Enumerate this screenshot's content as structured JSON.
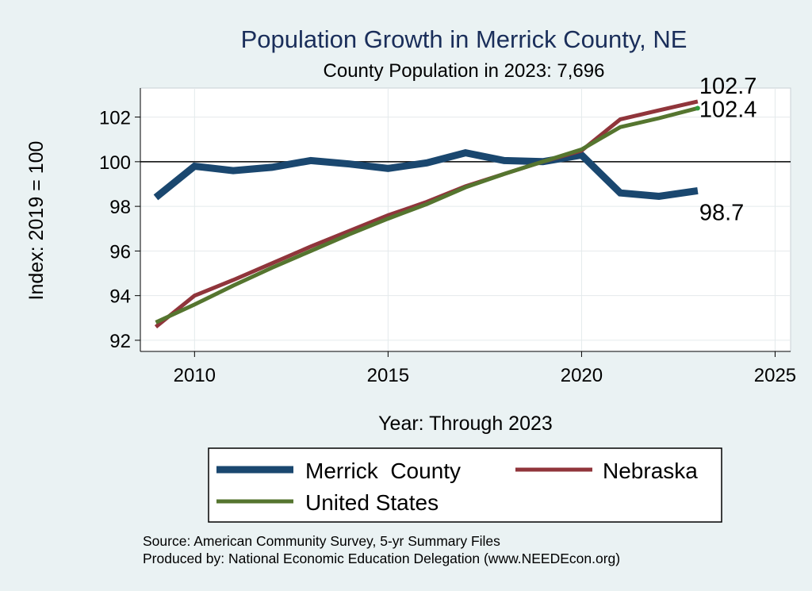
{
  "chart_data": {
    "type": "line",
    "title": "Population Growth in Merrick County, NE",
    "subtitle": "County Population in 2023: 7,696",
    "xlabel": "Year: Through 2023",
    "ylabel": "Index: 2019 = 100",
    "xlim": [
      2008.6,
      2025.4
    ],
    "ylim": [
      91.5,
      103.3
    ],
    "xticks": [
      2010,
      2015,
      2020,
      2025
    ],
    "yticks": [
      92,
      94,
      96,
      98,
      100,
      102
    ],
    "reference_line": 100,
    "grid": true,
    "x": [
      2009,
      2010,
      2011,
      2012,
      2013,
      2014,
      2015,
      2016,
      2017,
      2018,
      2019,
      2020,
      2021,
      2022,
      2023
    ],
    "series": [
      {
        "name": "Merrick  County",
        "color": "#1a476f",
        "values": [
          98.4,
          99.8,
          99.6,
          99.75,
          100.05,
          99.9,
          99.7,
          99.95,
          100.4,
          100.05,
          100.0,
          100.3,
          98.6,
          98.45,
          98.7
        ],
        "end_label": "98.7"
      },
      {
        "name": "Nebraska",
        "color": "#90353b",
        "values": [
          92.6,
          94.0,
          94.7,
          95.45,
          96.2,
          96.9,
          97.6,
          98.2,
          98.9,
          99.45,
          100.0,
          100.5,
          101.9,
          102.3,
          102.7
        ],
        "end_label": "102.7"
      },
      {
        "name": "United States",
        "color": "#55752f",
        "values": [
          92.8,
          93.6,
          94.45,
          95.25,
          96.0,
          96.75,
          97.45,
          98.1,
          98.85,
          99.45,
          100.0,
          100.55,
          101.55,
          101.95,
          102.4
        ],
        "end_label": "102.4"
      }
    ],
    "legend": {
      "position": "bottom",
      "entries": [
        "Merrick  County",
        "Nebraska",
        "United States"
      ]
    }
  },
  "footer": {
    "source": "Source: American Community Survey, 5-yr Summary Files",
    "produced_by": "Produced by: National Economic Education Delegation (www.NEEDEcon.org)"
  }
}
